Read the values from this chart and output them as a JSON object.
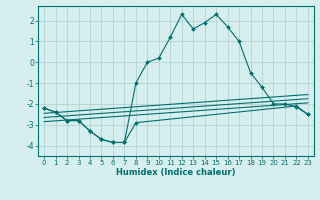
{
  "xlabel": "Humidex (Indice chaleur)",
  "background_color": "#d6eeee",
  "grid_color": "#b0cccc",
  "line_color": "#007070",
  "xlim": [
    -0.5,
    23.5
  ],
  "ylim": [
    -4.5,
    2.7
  ],
  "line1_x": [
    0,
    1,
    2,
    3,
    4,
    5,
    6,
    7,
    8,
    9,
    10,
    11,
    12,
    13,
    14,
    15,
    16,
    17,
    18,
    19,
    20,
    21,
    22,
    23
  ],
  "line1_y": [
    -2.2,
    -2.4,
    -2.8,
    -2.8,
    -3.3,
    -3.7,
    -3.85,
    -3.85,
    -1.0,
    0.0,
    0.2,
    1.2,
    2.3,
    1.6,
    1.9,
    2.3,
    1.7,
    1.0,
    -0.5,
    -1.2,
    -2.0,
    -2.0,
    -2.15,
    -2.5
  ],
  "line2_x": [
    0,
    1,
    2,
    3,
    4,
    5,
    6,
    7,
    8,
    22,
    23
  ],
  "line2_y": [
    -2.2,
    -2.4,
    -2.8,
    -2.8,
    -3.3,
    -3.7,
    -3.85,
    -3.85,
    -2.9,
    -2.1,
    -2.5
  ],
  "line3_x": [
    0,
    23
  ],
  "line3_y": [
    -2.45,
    -1.55
  ],
  "line4_x": [
    0,
    23
  ],
  "line4_y": [
    -2.65,
    -1.75
  ],
  "line5_x": [
    0,
    23
  ],
  "line5_y": [
    -2.85,
    -1.95
  ],
  "yticks": [
    -4,
    -3,
    -2,
    -1,
    0,
    1,
    2
  ],
  "xticks": [
    0,
    1,
    2,
    3,
    4,
    5,
    6,
    7,
    8,
    9,
    10,
    11,
    12,
    13,
    14,
    15,
    16,
    17,
    18,
    19,
    20,
    21,
    22,
    23
  ]
}
